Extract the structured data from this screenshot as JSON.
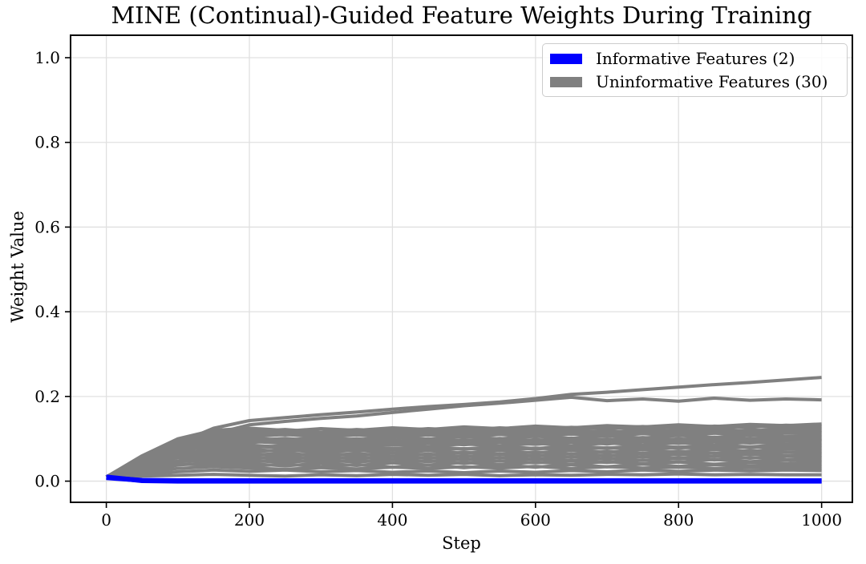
{
  "chart_data": {
    "type": "line",
    "title": "MINE (Continual)-Guided Feature Weights During Training",
    "xlabel": "Step",
    "ylabel": "Weight Value",
    "xlim": [
      -50,
      1043
    ],
    "ylim": [
      -0.05,
      1.053
    ],
    "x_ticks": [
      0,
      200,
      400,
      600,
      800,
      1000
    ],
    "y_ticks": [
      0.0,
      0.2,
      0.4,
      0.6,
      0.8,
      1.0
    ],
    "grid": true,
    "grid_color": "#e0e0e0",
    "spine_color": "#000000",
    "legend": {
      "position": "upper right",
      "entries": [
        {
          "label": "Informative Features (2)",
          "color": "#0000ff"
        },
        {
          "label": "Uninformative Features (30)",
          "color": "#808080"
        }
      ]
    },
    "series_styles": {
      "uninformative": {
        "color": "#808080",
        "width": 4
      },
      "informative": {
        "color": "#0000ff",
        "width": 6
      }
    },
    "steps": [
      0,
      50,
      100,
      150,
      200,
      250,
      300,
      350,
      400,
      450,
      500,
      550,
      600,
      650,
      700,
      750,
      800,
      850,
      900,
      950,
      1000
    ],
    "series": [
      {
        "group": "uninformative",
        "values": [
          0.01,
          0.05,
          0.09,
          0.125,
          0.143,
          0.15,
          0.157,
          0.163,
          0.17,
          0.176,
          0.181,
          0.187,
          0.195,
          0.205,
          0.21,
          0.216,
          0.222,
          0.228,
          0.233,
          0.239,
          0.245
        ]
      },
      {
        "group": "uninformative",
        "values": [
          0.01,
          0.042,
          0.078,
          0.112,
          0.133,
          0.141,
          0.148,
          0.154,
          0.162,
          0.17,
          0.178,
          0.184,
          0.191,
          0.198,
          0.19,
          0.194,
          0.189,
          0.196,
          0.191,
          0.194,
          0.192
        ]
      },
      {
        "group": "uninformative",
        "values": [
          0.01,
          0.055,
          0.095,
          0.118,
          0.122,
          0.118,
          0.124,
          0.12,
          0.126,
          0.122,
          0.128,
          0.124,
          0.13,
          0.126,
          0.131,
          0.128,
          0.133,
          0.129,
          0.134,
          0.131,
          0.135
        ]
      },
      {
        "group": "uninformative",
        "values": [
          0.01,
          0.048,
          0.088,
          0.112,
          0.118,
          0.122,
          0.116,
          0.122,
          0.118,
          0.124,
          0.12,
          0.126,
          0.122,
          0.127,
          0.124,
          0.129,
          0.125,
          0.13,
          0.127,
          0.132,
          0.13
        ]
      },
      {
        "group": "uninformative",
        "values": [
          0.01,
          0.06,
          0.1,
          0.12,
          0.125,
          0.12,
          0.115,
          0.119,
          0.124,
          0.119,
          0.125,
          0.121,
          0.126,
          0.122,
          0.128,
          0.123,
          0.128,
          0.125,
          0.13,
          0.126,
          0.127
        ]
      },
      {
        "group": "uninformative",
        "values": [
          0.01,
          0.04,
          0.08,
          0.105,
          0.112,
          0.117,
          0.111,
          0.116,
          0.112,
          0.118,
          0.113,
          0.119,
          0.115,
          0.12,
          0.116,
          0.121,
          0.118,
          0.122,
          0.119,
          0.123,
          0.124
        ]
      },
      {
        "group": "uninformative",
        "values": [
          0.01,
          0.052,
          0.09,
          0.108,
          0.114,
          0.109,
          0.115,
          0.11,
          0.116,
          0.111,
          0.117,
          0.112,
          0.118,
          0.113,
          0.119,
          0.114,
          0.12,
          0.116,
          0.121,
          0.117,
          0.12
        ]
      },
      {
        "group": "uninformative",
        "values": [
          0.01,
          0.045,
          0.082,
          0.102,
          0.108,
          0.112,
          0.106,
          0.112,
          0.107,
          0.113,
          0.108,
          0.114,
          0.109,
          0.115,
          0.11,
          0.116,
          0.111,
          0.116,
          0.112,
          0.117,
          0.115
        ]
      },
      {
        "group": "uninformative",
        "values": [
          0.01,
          0.058,
          0.094,
          0.11,
          0.105,
          0.11,
          0.104,
          0.109,
          0.103,
          0.109,
          0.104,
          0.11,
          0.105,
          0.111,
          0.106,
          0.112,
          0.107,
          0.113,
          0.108,
          0.113,
          0.112
        ]
      },
      {
        "group": "uninformative",
        "values": [
          0.01,
          0.036,
          0.072,
          0.095,
          0.102,
          0.097,
          0.103,
          0.098,
          0.104,
          0.099,
          0.105,
          0.1,
          0.106,
          0.101,
          0.107,
          0.102,
          0.108,
          0.103,
          0.109,
          0.105,
          0.108
        ]
      },
      {
        "group": "uninformative",
        "values": [
          0.01,
          0.05,
          0.086,
          0.1,
          0.096,
          0.101,
          0.095,
          0.1,
          0.094,
          0.1,
          0.095,
          0.101,
          0.096,
          0.102,
          0.097,
          0.103,
          0.098,
          0.104,
          0.1,
          0.105,
          0.105
        ]
      },
      {
        "group": "uninformative",
        "values": [
          0.01,
          0.042,
          0.076,
          0.092,
          0.098,
          0.093,
          0.098,
          0.092,
          0.097,
          0.091,
          0.097,
          0.092,
          0.098,
          0.093,
          0.099,
          0.094,
          0.1,
          0.095,
          0.101,
          0.097,
          0.1
        ]
      },
      {
        "group": "uninformative",
        "values": [
          0.01,
          0.055,
          0.088,
          0.096,
          0.091,
          0.096,
          0.09,
          0.095,
          0.089,
          0.094,
          0.088,
          0.094,
          0.089,
          0.095,
          0.09,
          0.096,
          0.092,
          0.097,
          0.093,
          0.098,
          0.098
        ]
      },
      {
        "group": "uninformative",
        "values": [
          0.01,
          0.034,
          0.068,
          0.088,
          0.094,
          0.089,
          0.084,
          0.089,
          0.085,
          0.09,
          0.086,
          0.091,
          0.087,
          0.092,
          0.088,
          0.093,
          0.089,
          0.094,
          0.09,
          0.095,
          0.095
        ]
      },
      {
        "group": "uninformative",
        "values": [
          0.01,
          0.047,
          0.08,
          0.09,
          0.085,
          0.08,
          0.086,
          0.081,
          0.087,
          0.082,
          0.088,
          0.083,
          0.089,
          0.084,
          0.09,
          0.085,
          0.091,
          0.086,
          0.092,
          0.088,
          0.09
        ]
      },
      {
        "group": "uninformative",
        "values": [
          0.01,
          0.04,
          0.072,
          0.084,
          0.079,
          0.084,
          0.078,
          0.083,
          0.077,
          0.082,
          0.076,
          0.082,
          0.077,
          0.083,
          0.078,
          0.084,
          0.08,
          0.085,
          0.081,
          0.086,
          0.085
        ]
      },
      {
        "group": "uninformative",
        "values": [
          0.01,
          0.03,
          0.06,
          0.078,
          0.083,
          0.078,
          0.073,
          0.078,
          0.074,
          0.079,
          0.075,
          0.08,
          0.076,
          0.081,
          0.077,
          0.082,
          0.078,
          0.083,
          0.079,
          0.084,
          0.08
        ]
      },
      {
        "group": "uninformative",
        "values": [
          0.01,
          0.044,
          0.074,
          0.08,
          0.075,
          0.07,
          0.075,
          0.071,
          0.076,
          0.072,
          0.077,
          0.073,
          0.078,
          0.074,
          0.079,
          0.075,
          0.08,
          0.076,
          0.081,
          0.077,
          0.078
        ]
      },
      {
        "group": "uninformative",
        "values": [
          0.01,
          0.037,
          0.066,
          0.074,
          0.069,
          0.074,
          0.068,
          0.073,
          0.067,
          0.072,
          0.066,
          0.072,
          0.067,
          0.073,
          0.068,
          0.074,
          0.069,
          0.075,
          0.07,
          0.076,
          0.072
        ]
      },
      {
        "group": "uninformative",
        "values": [
          0.01,
          0.028,
          0.056,
          0.07,
          0.065,
          0.06,
          0.066,
          0.061,
          0.067,
          0.062,
          0.068,
          0.063,
          0.069,
          0.064,
          0.07,
          0.065,
          0.071,
          0.066,
          0.072,
          0.068,
          0.068
        ]
      },
      {
        "group": "uninformative",
        "values": [
          0.01,
          0.041,
          0.068,
          0.066,
          0.061,
          0.066,
          0.06,
          0.065,
          0.059,
          0.064,
          0.058,
          0.064,
          0.059,
          0.065,
          0.06,
          0.066,
          0.062,
          0.067,
          0.063,
          0.068,
          0.065
        ]
      },
      {
        "group": "uninformative",
        "values": [
          0.01,
          0.033,
          0.058,
          0.062,
          0.057,
          0.052,
          0.058,
          0.053,
          0.059,
          0.054,
          0.06,
          0.055,
          0.061,
          0.056,
          0.062,
          0.057,
          0.063,
          0.058,
          0.064,
          0.06,
          0.06
        ]
      },
      {
        "group": "uninformative",
        "values": [
          0.01,
          0.026,
          0.048,
          0.058,
          0.053,
          0.058,
          0.052,
          0.057,
          0.051,
          0.056,
          0.05,
          0.056,
          0.051,
          0.057,
          0.052,
          0.058,
          0.053,
          0.059,
          0.054,
          0.06,
          0.055
        ]
      },
      {
        "group": "uninformative",
        "values": [
          0.01,
          0.038,
          0.056,
          0.054,
          0.049,
          0.044,
          0.05,
          0.045,
          0.051,
          0.046,
          0.052,
          0.047,
          0.053,
          0.048,
          0.054,
          0.049,
          0.055,
          0.05,
          0.056,
          0.052,
          0.05
        ]
      },
      {
        "group": "uninformative",
        "values": [
          0.01,
          0.03,
          0.046,
          0.05,
          0.045,
          0.05,
          0.044,
          0.049,
          0.043,
          0.048,
          0.042,
          0.048,
          0.043,
          0.049,
          0.044,
          0.05,
          0.045,
          0.051,
          0.046,
          0.05,
          0.045
        ]
      },
      {
        "group": "uninformative",
        "values": [
          0.01,
          0.022,
          0.038,
          0.044,
          0.041,
          0.036,
          0.042,
          0.037,
          0.043,
          0.038,
          0.044,
          0.039,
          0.045,
          0.04,
          0.046,
          0.041,
          0.045,
          0.04,
          0.044,
          0.042,
          0.04
        ]
      },
      {
        "group": "uninformative",
        "values": [
          0.01,
          0.028,
          0.04,
          0.038,
          0.035,
          0.04,
          0.034,
          0.039,
          0.033,
          0.038,
          0.032,
          0.038,
          0.033,
          0.039,
          0.034,
          0.04,
          0.035,
          0.039,
          0.036,
          0.038,
          0.035
        ]
      },
      {
        "group": "uninformative",
        "values": [
          0.01,
          0.02,
          0.03,
          0.034,
          0.031,
          0.028,
          0.032,
          0.029,
          0.033,
          0.03,
          0.034,
          0.031,
          0.035,
          0.03,
          0.034,
          0.031,
          0.033,
          0.03,
          0.032,
          0.031,
          0.03
        ]
      },
      {
        "group": "uninformative",
        "values": [
          0.01,
          0.016,
          0.022,
          0.026,
          0.023,
          0.026,
          0.022,
          0.025,
          0.021,
          0.024,
          0.02,
          0.024,
          0.021,
          0.025,
          0.022,
          0.026,
          0.023,
          0.026,
          0.024,
          0.026,
          0.025
        ]
      },
      {
        "group": "uninformative",
        "values": [
          0.01,
          0.012,
          0.014,
          0.016,
          0.014,
          0.012,
          0.015,
          0.013,
          0.016,
          0.014,
          0.016,
          0.013,
          0.015,
          0.014,
          0.016,
          0.015,
          0.017,
          0.015,
          0.016,
          0.015,
          0.015
        ]
      },
      {
        "group": "informative",
        "values": [
          0.01,
          0.001,
          0.0,
          0.0,
          0.0,
          0.0,
          0.0,
          0.0,
          0.0,
          0.0,
          0.0,
          0.0,
          0.0,
          0.0,
          0.0,
          0.0,
          0.0,
          0.0,
          0.0,
          0.0,
          0.0
        ]
      },
      {
        "group": "informative",
        "values": [
          0.008,
          0.002,
          0.001,
          0.001,
          0.001,
          0.001,
          0.001,
          0.001,
          0.001,
          0.001,
          0.001,
          0.001,
          0.001,
          0.001,
          0.001,
          0.001,
          0.001,
          0.001,
          0.001,
          0.001,
          0.001
        ]
      }
    ]
  }
}
